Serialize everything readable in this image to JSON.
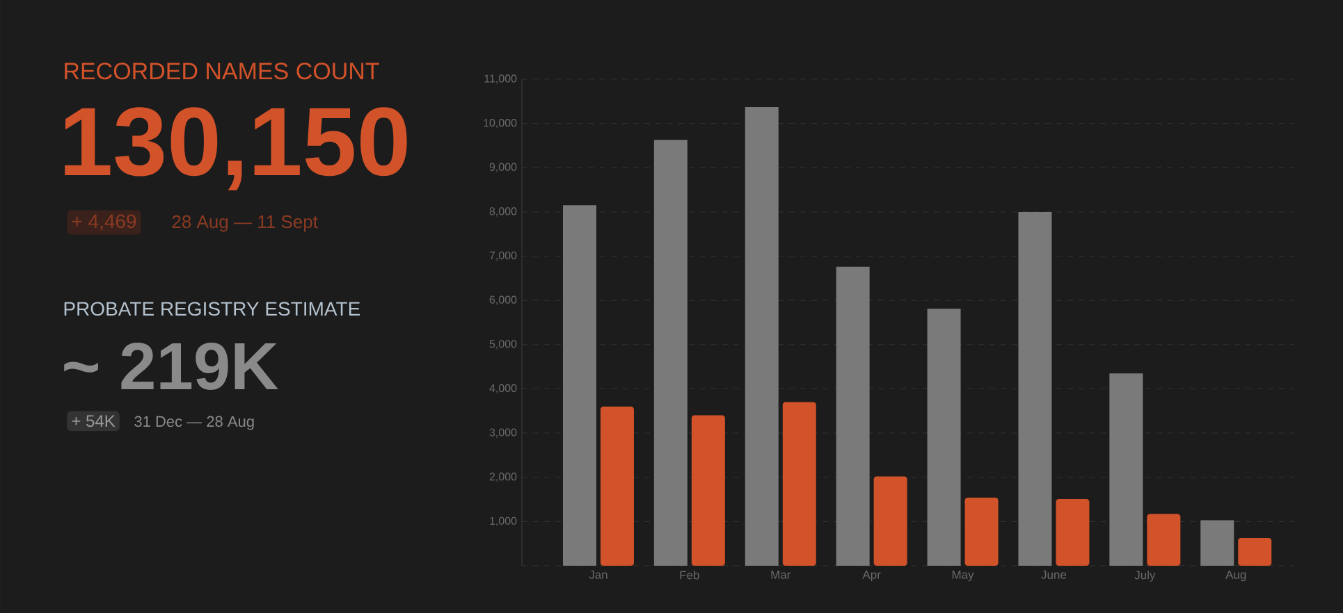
{
  "chart_data": [
    {
      "type": "other",
      "title": "RECORDED NAMES COUNT",
      "annotations": [
        "130,150",
        "+ 4,469",
        "28 Aug — 11 Sept",
        "PROBATE REGISTRY ESTIMATE",
        "~ 219K",
        "+ 54K",
        "31 Dec — 28 Aug"
      ]
    },
    {
      "type": "bar",
      "categories": [
        "Jan",
        "Feb",
        "Mar",
        "Apr",
        "May",
        "June",
        "July",
        "Aug"
      ],
      "series": [
        {
          "color": "#7a7a7a",
          "values": [
            8150,
            9630,
            10370,
            6760,
            5810,
            8000,
            4350,
            1030
          ]
        },
        {
          "color": "#d2522a",
          "values": [
            3600,
            3400,
            3700,
            2020,
            1540,
            1510,
            1170,
            630
          ]
        }
      ],
      "ylim": [
        0,
        11000
      ],
      "yticks": [
        {
          "value": 0,
          "label": null
        },
        {
          "value": 1000,
          "label": "1,000"
        },
        {
          "value": 2000,
          "label": "2,000"
        },
        {
          "value": 3000,
          "label": "3,000"
        },
        {
          "value": 4000,
          "label": "4,000"
        },
        {
          "value": 5000,
          "label": "5,000"
        },
        {
          "value": 6000,
          "label": "6,000"
        },
        {
          "value": 7000,
          "label": "7,000"
        },
        {
          "value": 8000,
          "label": "8,000"
        },
        {
          "value": 9000,
          "label": "9,000"
        },
        {
          "value": 10000,
          "label": "10,000"
        },
        {
          "value": 11000,
          "label": "11,000"
        }
      ],
      "grid": "y"
    }
  ]
}
